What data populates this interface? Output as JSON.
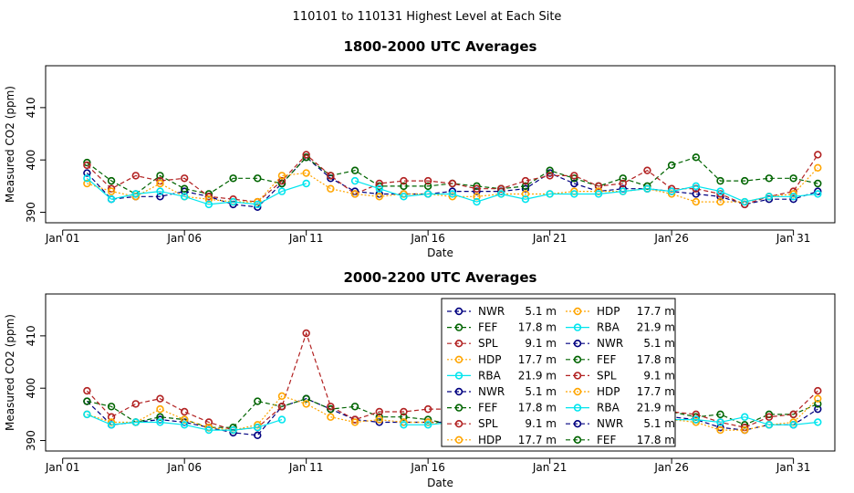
{
  "page_title": "110101  to  110131 Highest Level at Each Site",
  "chart_data": [
    {
      "type": "line",
      "title": "1800-2000 UTC Averages",
      "xlabel": "Date",
      "ylabel": "Measured CO2 (ppm)",
      "ylim": [
        388,
        418
      ],
      "xlim": [
        0.3,
        32.7
      ],
      "x_ticks": [
        {
          "x": 1,
          "label": "Jan 01"
        },
        {
          "x": 6,
          "label": "Jan 06"
        },
        {
          "x": 11,
          "label": "Jan 11"
        },
        {
          "x": 16,
          "label": "Jan 16"
        },
        {
          "x": 21,
          "label": "Jan 21"
        },
        {
          "x": 26,
          "label": "Jan 26"
        },
        {
          "x": 31,
          "label": "Jan 31"
        }
      ],
      "y_ticks": [
        390,
        400,
        410
      ],
      "x": [
        2,
        3,
        4,
        5,
        6,
        7,
        8,
        9,
        10,
        11,
        12,
        13,
        14,
        15,
        16,
        17,
        18,
        19,
        20,
        21,
        22,
        23,
        24,
        25,
        26,
        27,
        28,
        29,
        30,
        31,
        32
      ],
      "series": [
        {
          "name": "NWR",
          "height": "5.1 m",
          "color": "#000080",
          "line": "dash",
          "values": [
            397.5,
            392.5,
            393.0,
            393.0,
            394.0,
            393.0,
            391.5,
            391.0,
            395.5,
            400.5,
            396.5,
            394.0,
            393.5,
            393.5,
            393.5,
            394.0,
            394.0,
            394.0,
            394.5,
            397.5,
            395.5,
            394.0,
            394.5,
            394.5,
            394.0,
            393.5,
            393.0,
            391.5,
            392.5,
            392.5,
            394.0
          ]
        },
        {
          "name": "FEF",
          "height": "17.8 m",
          "color": "#006400",
          "line": "dash",
          "values": [
            399.5,
            396.0,
            393.5,
            397.0,
            394.5,
            393.5,
            396.5,
            396.5,
            395.5,
            400.5,
            397.0,
            398.0,
            395.0,
            395.0,
            395.0,
            395.5,
            395.0,
            394.5,
            395.0,
            398.0,
            396.5,
            395.0,
            396.5,
            395.0,
            399.0,
            400.5,
            396.0,
            396.0,
            396.5,
            396.5,
            395.5
          ]
        },
        {
          "name": "SPL",
          "height": "9.1 m",
          "color": "#b22222",
          "line": "dash",
          "values": [
            399.0,
            394.5,
            397.0,
            396.0,
            396.5,
            393.0,
            392.5,
            392.0,
            396.0,
            401.0,
            397.0,
            393.5,
            395.5,
            396.0,
            396.0,
            395.5,
            394.5,
            394.5,
            396.0,
            397.0,
            397.0,
            395.0,
            395.5,
            398.0,
            394.5,
            394.5,
            393.5,
            391.5,
            393.0,
            394.0,
            401.0
          ]
        },
        {
          "name": "HDP",
          "height": "17.7 m",
          "color": "#ffa500",
          "line": "dot",
          "values": [
            395.5,
            394.0,
            393.0,
            395.5,
            393.0,
            392.5,
            392.0,
            392.0,
            397.0,
            397.5,
            394.5,
            393.5,
            393.0,
            393.5,
            393.5,
            393.0,
            393.0,
            393.5,
            393.5,
            393.5,
            394.0,
            394.0,
            394.0,
            394.5,
            393.5,
            392.0,
            392.0,
            392.0,
            393.0,
            393.5,
            398.5
          ]
        },
        {
          "name": "RBA",
          "height": "21.9 m",
          "color": "#00e5ee",
          "line": "solid",
          "values": [
            396.5,
            392.5,
            393.5,
            394.0,
            393.0,
            391.5,
            392.0,
            391.5,
            394.0,
            395.5,
            null,
            396.0,
            394.5,
            393.0,
            393.5,
            393.5,
            392.0,
            393.5,
            392.5,
            393.5,
            393.5,
            393.5,
            394.0,
            394.5,
            394.0,
            395.0,
            394.0,
            392.0,
            393.0,
            393.0,
            393.5
          ]
        }
      ]
    },
    {
      "type": "line",
      "title": "2000-2200 UTC Averages",
      "xlabel": "Date",
      "ylabel": "Measured CO2 (ppm)",
      "ylim": [
        388,
        418
      ],
      "xlim": [
        0.3,
        32.7
      ],
      "x_ticks": [
        {
          "x": 1,
          "label": "Jan 01"
        },
        {
          "x": 6,
          "label": "Jan 06"
        },
        {
          "x": 11,
          "label": "Jan 11"
        },
        {
          "x": 16,
          "label": "Jan 16"
        },
        {
          "x": 21,
          "label": "Jan 21"
        },
        {
          "x": 26,
          "label": "Jan 26"
        },
        {
          "x": 31,
          "label": "Jan 31"
        }
      ],
      "y_ticks": [
        390,
        400,
        410
      ],
      "x": [
        2,
        3,
        4,
        5,
        6,
        7,
        8,
        9,
        10,
        11,
        12,
        13,
        14,
        15,
        16,
        17,
        18,
        19,
        20,
        21,
        22,
        23,
        24,
        25,
        26,
        27,
        28,
        29,
        30,
        31,
        32
      ],
      "series": [
        {
          "name": "NWR",
          "height": "5.1 m",
          "color": "#000080",
          "line": "dash",
          "values": [
            397.5,
            393.0,
            393.5,
            394.0,
            393.5,
            392.5,
            391.5,
            391.0,
            396.5,
            398.0,
            396.0,
            394.0,
            393.5,
            393.5,
            393.5,
            393.5,
            393.0,
            393.5,
            393.5,
            394.0,
            394.5,
            394.0,
            394.5,
            394.5,
            394.5,
            394.0,
            392.5,
            392.0,
            393.0,
            393.0,
            396.0
          ]
        },
        {
          "name": "FEF",
          "height": "17.8 m",
          "color": "#006400",
          "line": "dash",
          "values": [
            397.5,
            396.5,
            393.5,
            394.5,
            394.0,
            392.5,
            392.5,
            397.5,
            396.5,
            398.0,
            396.0,
            396.5,
            394.5,
            394.5,
            394.0,
            393.0,
            393.0,
            393.5,
            394.0,
            395.5,
            395.5,
            395.0,
            395.5,
            395.5,
            395.5,
            394.5,
            395.0,
            393.0,
            395.0,
            395.0,
            397.0
          ]
        },
        {
          "name": "SPL",
          "height": "9.1 m",
          "color": "#b22222",
          "line": "dash",
          "values": [
            399.5,
            394.5,
            397.0,
            398.0,
            395.5,
            393.5,
            392.0,
            392.5,
            396.5,
            410.5,
            396.5,
            394.0,
            395.5,
            395.5,
            396.0,
            396.0,
            395.5,
            395.5,
            396.0,
            396.0,
            397.0,
            395.5,
            395.0,
            395.0,
            395.5,
            395.0,
            393.5,
            392.5,
            394.5,
            395.0,
            399.5
          ]
        },
        {
          "name": "HDP",
          "height": "17.7 m",
          "color": "#ffa500",
          "line": "dot",
          "values": [
            395.0,
            393.5,
            393.5,
            396.0,
            394.0,
            392.5,
            392.0,
            393.0,
            398.5,
            397.0,
            394.5,
            393.5,
            394.0,
            393.5,
            393.5,
            393.0,
            393.0,
            393.0,
            393.5,
            393.5,
            393.5,
            394.0,
            394.5,
            394.0,
            394.0,
            393.5,
            392.0,
            392.0,
            393.0,
            393.5,
            398.0
          ]
        },
        {
          "name": "RBA",
          "height": "21.9 m",
          "color": "#00e5ee",
          "line": "solid",
          "values": [
            395.0,
            393.0,
            393.5,
            393.5,
            393.0,
            392.0,
            392.0,
            392.5,
            394.0,
            null,
            null,
            null,
            null,
            393.0,
            393.0,
            393.5,
            392.5,
            393.5,
            393.0,
            393.5,
            393.5,
            394.0,
            394.0,
            394.0,
            394.0,
            394.0,
            393.5,
            394.5,
            393.0,
            393.0,
            393.5
          ]
        }
      ],
      "legend": {
        "placement": "inside-right",
        "columns": [
          [
            {
              "name": "NWR",
              "height": "5.1 m",
              "color": "#000080",
              "line": "dash"
            },
            {
              "name": "FEF",
              "height": "17.8 m",
              "color": "#006400",
              "line": "dash"
            },
            {
              "name": "SPL",
              "height": "9.1 m",
              "color": "#b22222",
              "line": "dash"
            },
            {
              "name": "HDP",
              "height": "17.7 m",
              "color": "#ffa500",
              "line": "dot"
            },
            {
              "name": "RBA",
              "height": "21.9 m",
              "color": "#00e5ee",
              "line": "solid"
            },
            {
              "name": "NWR",
              "height": "5.1 m",
              "color": "#000080",
              "line": "dash"
            },
            {
              "name": "FEF",
              "height": "17.8 m",
              "color": "#006400",
              "line": "dash"
            },
            {
              "name": "SPL",
              "height": "9.1 m",
              "color": "#b22222",
              "line": "dash"
            },
            {
              "name": "HDP",
              "height": "17.7 m",
              "color": "#ffa500",
              "line": "dot"
            }
          ],
          [
            {
              "name": "HDP",
              "height": "17.7 m",
              "color": "#ffa500",
              "line": "dot"
            },
            {
              "name": "RBA",
              "height": "21.9 m",
              "color": "#00e5ee",
              "line": "solid"
            },
            {
              "name": "NWR",
              "height": "5.1 m",
              "color": "#000080",
              "line": "dash"
            },
            {
              "name": "FEF",
              "height": "17.8 m",
              "color": "#006400",
              "line": "dash"
            },
            {
              "name": "SPL",
              "height": "9.1 m",
              "color": "#b22222",
              "line": "dash"
            },
            {
              "name": "HDP",
              "height": "17.7 m",
              "color": "#ffa500",
              "line": "dot"
            },
            {
              "name": "RBA",
              "height": "21.9 m",
              "color": "#00e5ee",
              "line": "solid"
            },
            {
              "name": "NWR",
              "height": "5.1 m",
              "color": "#000080",
              "line": "dash"
            },
            {
              "name": "FEF",
              "height": "17.8 m",
              "color": "#006400",
              "line": "dash"
            }
          ]
        ]
      }
    }
  ]
}
